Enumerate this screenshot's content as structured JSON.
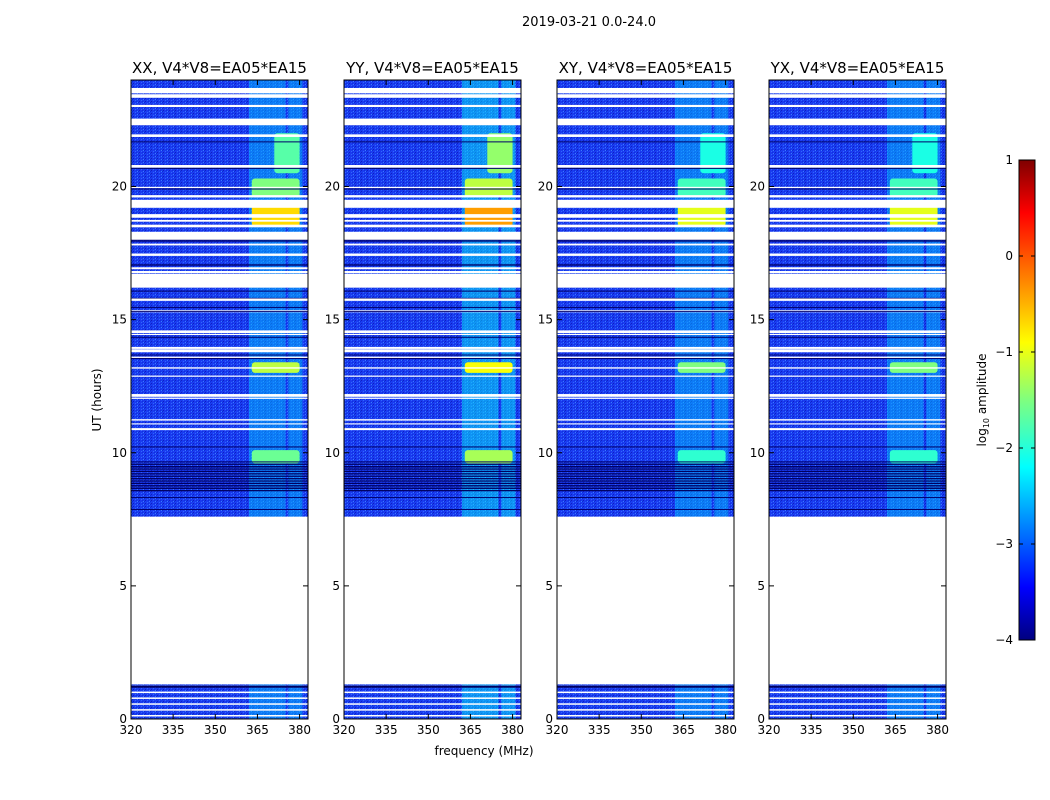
{
  "chart_data": {
    "type": "heatmap",
    "suptitle": "2019-03-21 0.0-24.0",
    "xlabel": "frequency (MHz)",
    "ylabel": "UT (hours)",
    "xlim": [
      320,
      383
    ],
    "ylim": [
      0,
      24
    ],
    "xticks": [
      320,
      335,
      350,
      365,
      380
    ],
    "yticks": [
      0,
      5,
      10,
      15,
      20
    ],
    "colorbar": {
      "label": "log10 amplitude",
      "label_base": "log",
      "label_sub": "10",
      "label_rest": " amplitude",
      "range": [
        -4,
        1
      ],
      "ticks": [
        1,
        0,
        -1,
        -2,
        -3,
        -4
      ],
      "tick_labels": [
        "1",
        "0",
        "−1",
        "−2",
        "−3",
        "−4"
      ],
      "colormap": "jet"
    },
    "panels": [
      {
        "title": "XX, V4*V8=EA05*EA15",
        "polarization": "XX"
      },
      {
        "title": "YY, V4*V8=EA05*EA15",
        "polarization": "YY"
      },
      {
        "title": "XY, V4*V8=EA05*EA15",
        "polarization": "XY"
      },
      {
        "title": "YX, V4*V8=EA05*EA15",
        "polarization": "YX"
      }
    ],
    "no_data_intervals_hours": [
      [
        1.3,
        7.6
      ],
      [
        16.2,
        16.65
      ],
      [
        18.0,
        18.3
      ],
      [
        19.2,
        19.5
      ],
      [
        22.3,
        22.55
      ],
      [
        23.5,
        23.7
      ]
    ],
    "rfi_bands_mhz": [
      [
        362,
        367
      ],
      [
        367,
        375
      ],
      [
        376,
        381
      ]
    ],
    "strong_rfi_events": [
      {
        "ut_hours": [
          18.5,
          19.4
        ],
        "freq_mhz": [
          363,
          380
        ],
        "log_amplitude": -0.7
      },
      {
        "ut_hours": [
          19.6,
          20.3
        ],
        "freq_mhz": [
          363,
          380
        ],
        "log_amplitude": -1.5
      },
      {
        "ut_hours": [
          13.0,
          13.4
        ],
        "freq_mhz": [
          363,
          380
        ],
        "log_amplitude": -1.2
      },
      {
        "ut_hours": [
          9.6,
          10.1
        ],
        "freq_mhz": [
          363,
          380
        ],
        "log_amplitude": -1.6
      },
      {
        "ut_hours": [
          20.5,
          22.0
        ],
        "freq_mhz": [
          371,
          380
        ],
        "log_amplitude": -1.7
      }
    ],
    "background_log_amplitude": -3.2
  }
}
